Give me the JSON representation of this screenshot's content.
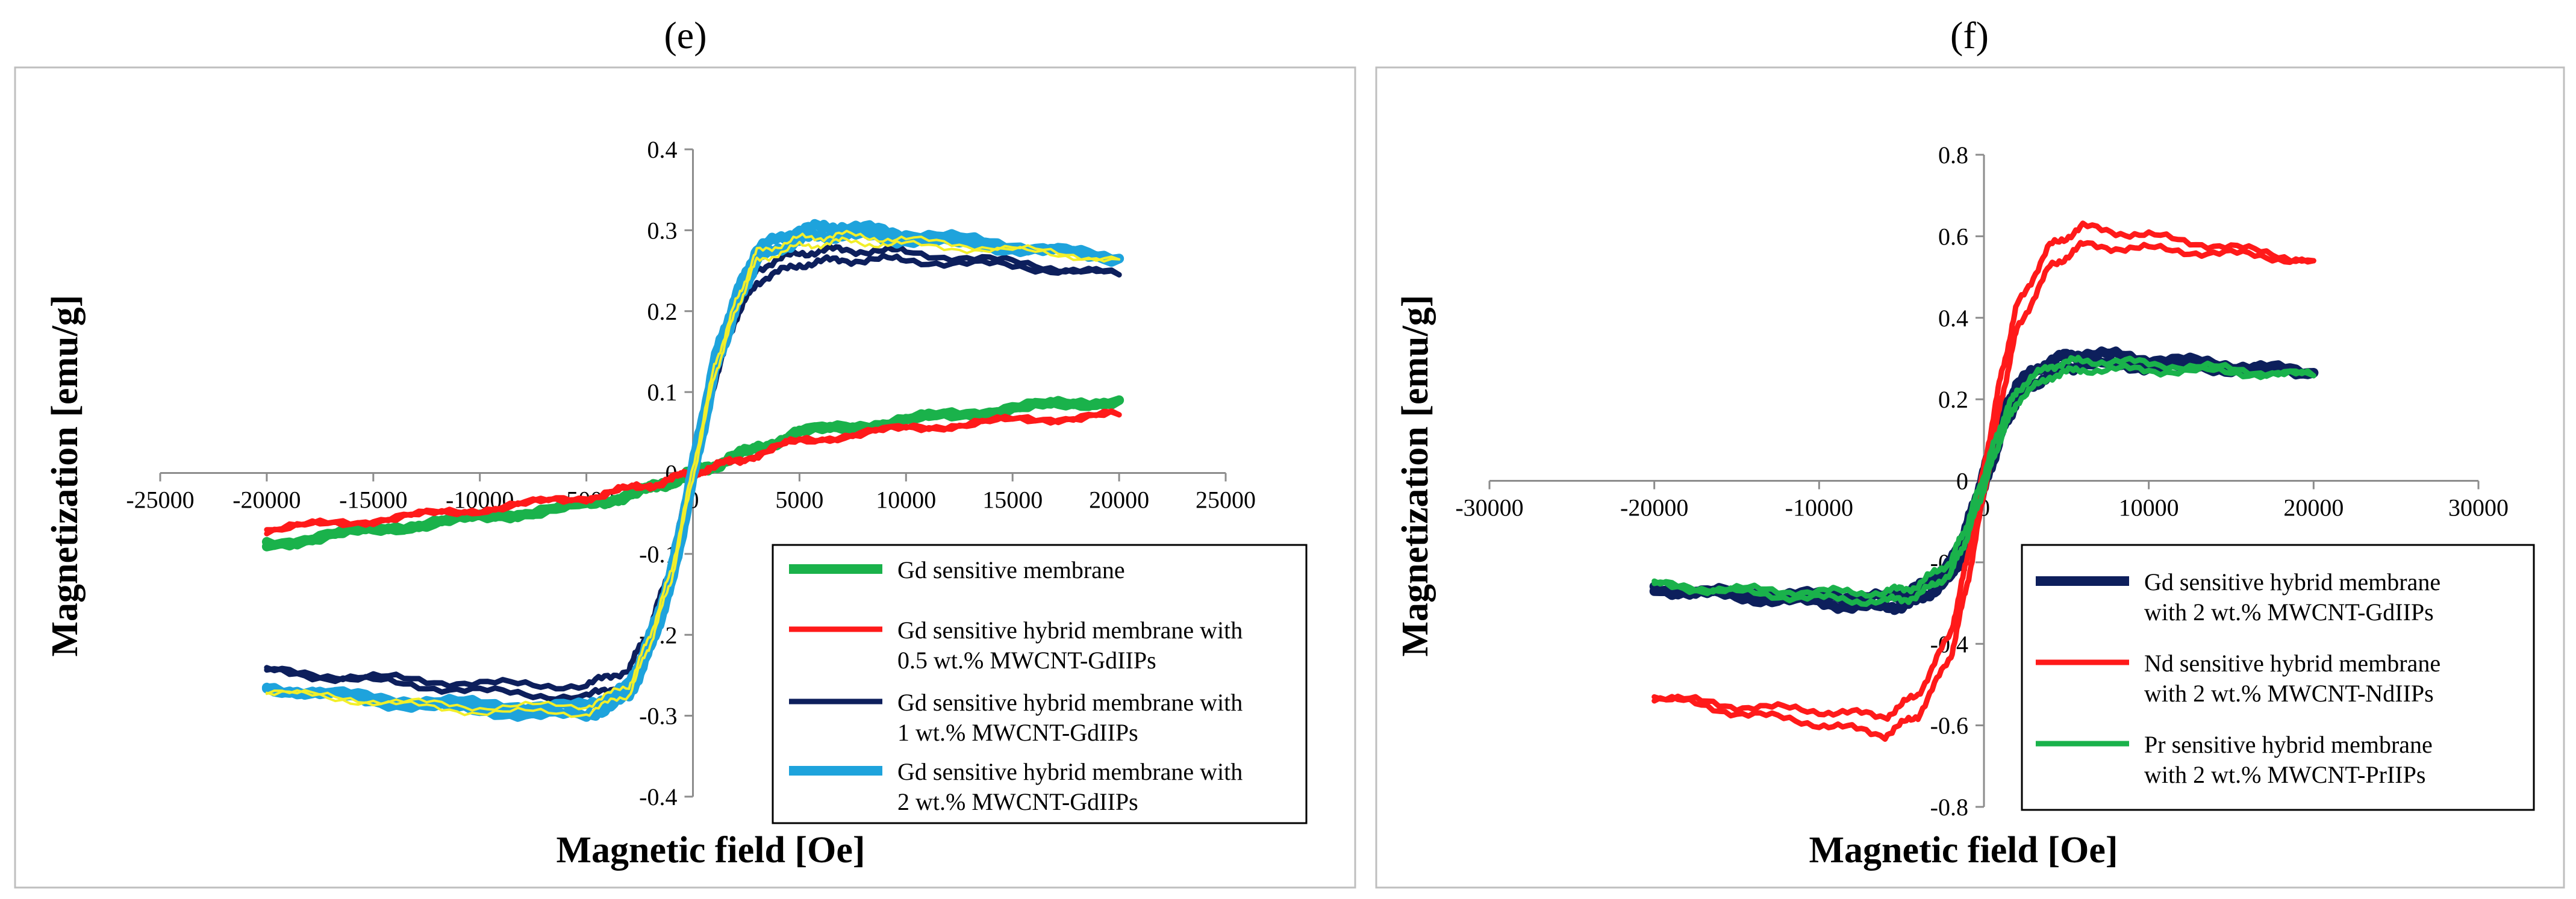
{
  "chart_data": [
    {
      "type": "line",
      "panel_label": "(e)",
      "xlabel": "Magnetic field [Oe]",
      "ylabel": "Magnetization [emu/g]",
      "xlim": [
        -25000,
        25000
      ],
      "ylim": [
        -0.4,
        0.4
      ],
      "x_ticks": [
        -25000,
        -20000,
        -15000,
        -10000,
        -5000,
        0,
        5000,
        10000,
        15000,
        20000,
        25000
      ],
      "y_ticks": [
        -0.4,
        -0.3,
        -0.2,
        -0.1,
        0,
        0.1,
        0.2,
        0.3,
        0.4
      ],
      "x_tick_labels": [
        "-25000",
        "-20000",
        "-15000",
        "-10000",
        "-5000",
        "0",
        "5000",
        "10000",
        "15000",
        "20000",
        "25000"
      ],
      "y_tick_labels": [
        "-0.4",
        "-0.3",
        "-0.2",
        "-0.1",
        "0",
        "0.1",
        "0.2",
        "0.3",
        "0.4"
      ],
      "grid": false,
      "legend_position": "bottom-right",
      "series": [
        {
          "name": "Gd sensitive membrane",
          "color": "#1ab24b",
          "width": 16,
          "x": [
            -20000,
            -15000,
            -10000,
            -5000,
            -2000,
            0,
            2000,
            5000,
            10000,
            15000,
            20000
          ],
          "y": [
            -0.088,
            -0.07,
            -0.055,
            -0.04,
            -0.02,
            0,
            0.02,
            0.05,
            0.065,
            0.08,
            0.09
          ]
        },
        {
          "name": "Gd sensitive hybrid membrane with 0.5 wt.% MWCNT-GdIIPs",
          "color": "#ff1a1a",
          "width": 9,
          "x": [
            -20000,
            -15000,
            -10000,
            -5000,
            -2000,
            0,
            2000,
            5000,
            10000,
            15000,
            20000
          ],
          "y": [
            -0.07,
            -0.058,
            -0.045,
            -0.03,
            -0.015,
            0,
            0.015,
            0.04,
            0.055,
            0.065,
            0.072
          ]
        },
        {
          "name": "Gd sensitive hybrid membrane with 1 wt.% MWCNT-GdIIPs",
          "color": "#0d1f5c",
          "width": 9,
          "x": [
            -20000,
            -15000,
            -10000,
            -5000,
            -3000,
            -2000,
            -1000,
            0,
            1000,
            2000,
            3000,
            5000,
            7000,
            10000,
            15000,
            20000
          ],
          "y": [
            -0.245,
            -0.255,
            -0.265,
            -0.27,
            -0.25,
            -0.2,
            -0.12,
            0,
            0.12,
            0.2,
            0.245,
            0.265,
            0.27,
            0.268,
            0.258,
            0.245
          ]
        },
        {
          "name": "Gd sensitive hybrid membrane with 2 wt.% MWCNT-GdIIPs",
          "color": "#1ea3dc",
          "width": 16,
          "x": [
            -20000,
            -15000,
            -10000,
            -5000,
            -3000,
            -2000,
            -1000,
            0,
            1000,
            2000,
            3000,
            5000,
            7000,
            10000,
            15000,
            20000
          ],
          "y": [
            -0.265,
            -0.28,
            -0.29,
            -0.295,
            -0.27,
            -0.21,
            -0.13,
            0,
            0.13,
            0.21,
            0.27,
            0.295,
            0.3,
            0.292,
            0.28,
            0.265
          ]
        },
        {
          "name": "",
          "color": "#f2ef2a",
          "width": 4,
          "x": [
            -20000,
            -15000,
            -10000,
            -5000,
            -3000,
            -2000,
            -1000,
            0,
            1000,
            2000,
            3000,
            5000,
            7000,
            10000,
            15000,
            20000
          ],
          "y": [
            -0.27,
            -0.282,
            -0.292,
            -0.292,
            -0.268,
            -0.205,
            -0.125,
            0,
            0.125,
            0.205,
            0.268,
            0.285,
            0.29,
            0.285,
            0.276,
            0.264
          ]
        }
      ],
      "legend": [
        "Gd sensitive membrane",
        "Gd sensitive hybrid membrane with",
        "0.5 wt.% MWCNT-GdIIPs",
        "Gd sensitive hybrid membrane with",
        "1 wt.% MWCNT-GdIIPs",
        "Gd sensitive hybrid membrane with",
        "2 wt.% MWCNT-GdIIPs"
      ]
    },
    {
      "type": "line",
      "panel_label": "(f)",
      "xlabel": "Magnetic field [Oe]",
      "ylabel": "Magnetization [emu/g]",
      "xlim": [
        -30000,
        30000
      ],
      "ylim": [
        -0.8,
        0.8
      ],
      "x_ticks": [
        -30000,
        -20000,
        -10000,
        0,
        10000,
        20000,
        30000
      ],
      "y_ticks": [
        -0.8,
        -0.6,
        -0.4,
        -0.2,
        0,
        0.2,
        0.4,
        0.6,
        0.8
      ],
      "x_tick_labels": [
        "-30000",
        "-20000",
        "-10000",
        "0",
        "10000",
        "20000",
        "30000"
      ],
      "y_tick_labels": [
        "-0.8",
        "-0.6",
        "-0.4",
        "-0.2",
        "0",
        "0.2",
        "0.4",
        "0.6",
        "0.8"
      ],
      "grid": false,
      "legend_position": "bottom-right",
      "series": [
        {
          "name": "Gd sensitive hybrid membrane with 2 wt.% MWCNT-GdIIPs",
          "color": "#0d1f5c",
          "width": 16,
          "x": [
            -20000,
            -15000,
            -10000,
            -6000,
            -4000,
            -2000,
            -1000,
            0,
            1000,
            2000,
            4000,
            6000,
            10000,
            15000,
            20000
          ],
          "y": [
            -0.265,
            -0.28,
            -0.29,
            -0.3,
            -0.28,
            -0.22,
            -0.13,
            0,
            0.13,
            0.22,
            0.28,
            0.3,
            0.29,
            0.28,
            0.265
          ]
        },
        {
          "name": "Nd sensitive hybrid membrane with 2 wt.% MWCNT-NdIIPs",
          "color": "#ff1a1a",
          "width": 9,
          "x": [
            -20000,
            -15000,
            -10000,
            -6000,
            -4000,
            -2000,
            -1000,
            0,
            1000,
            2000,
            4000,
            6000,
            10000,
            15000,
            20000
          ],
          "y": [
            -0.53,
            -0.56,
            -0.58,
            -0.6,
            -0.55,
            -0.4,
            -0.22,
            0,
            0.22,
            0.4,
            0.55,
            0.6,
            0.585,
            0.565,
            0.54
          ]
        },
        {
          "name": "Pr sensitive hybrid membrane with 2 wt.% MWCNT-PrIIPs",
          "color": "#1ab24b",
          "width": 9,
          "x": [
            -20000,
            -15000,
            -10000,
            -6000,
            -4000,
            -2000,
            -1000,
            0,
            1000,
            2000,
            4000,
            6000,
            10000,
            15000,
            20000
          ],
          "y": [
            -0.255,
            -0.27,
            -0.28,
            -0.285,
            -0.27,
            -0.21,
            -0.12,
            0,
            0.12,
            0.21,
            0.27,
            0.285,
            0.28,
            0.27,
            0.258
          ]
        }
      ],
      "legend": [
        "Gd sensitive hybrid membrane",
        "with 2 wt.% MWCNT-GdIIPs",
        "Nd sensitive hybrid membrane",
        "with 2 wt.% MWCNT-NdIIPs",
        "Pr sensitive hybrid membrane",
        "with 2 wt.% MWCNT-PrIIPs"
      ]
    }
  ]
}
